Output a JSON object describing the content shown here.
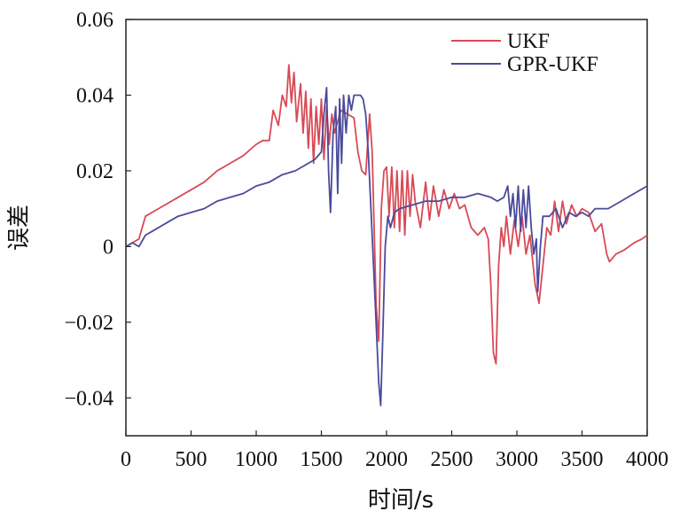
{
  "chart_data": {
    "type": "line",
    "xlabel": "时间/s",
    "ylabel": "误差",
    "xlim": [
      0,
      4000
    ],
    "ylim": [
      -0.05,
      0.06
    ],
    "xticks": [
      "0",
      "500",
      "1000",
      "1500",
      "2000",
      "2500",
      "3000",
      "3500",
      "4000"
    ],
    "yticks": [
      "0.06",
      "0.04",
      "0.02",
      "0",
      "−0.02",
      "−0.04"
    ],
    "grid": false,
    "legend": "top-right",
    "series": [
      {
        "name": "UKF",
        "color": "#d84a55",
        "points": [
          [
            0,
            0.0
          ],
          [
            50,
            0.001
          ],
          [
            100,
            0.002
          ],
          [
            150,
            0.008
          ],
          [
            200,
            0.009
          ],
          [
            300,
            0.011
          ],
          [
            400,
            0.013
          ],
          [
            500,
            0.015
          ],
          [
            600,
            0.017
          ],
          [
            700,
            0.02
          ],
          [
            800,
            0.022
          ],
          [
            900,
            0.024
          ],
          [
            1000,
            0.027
          ],
          [
            1050,
            0.028
          ],
          [
            1100,
            0.028
          ],
          [
            1130,
            0.036
          ],
          [
            1170,
            0.032
          ],
          [
            1200,
            0.04
          ],
          [
            1230,
            0.037
          ],
          [
            1250,
            0.048
          ],
          [
            1270,
            0.038
          ],
          [
            1290,
            0.046
          ],
          [
            1310,
            0.033
          ],
          [
            1340,
            0.043
          ],
          [
            1360,
            0.03
          ],
          [
            1380,
            0.041
          ],
          [
            1400,
            0.026
          ],
          [
            1420,
            0.039
          ],
          [
            1440,
            0.022
          ],
          [
            1460,
            0.037
          ],
          [
            1480,
            0.027
          ],
          [
            1500,
            0.039
          ],
          [
            1520,
            0.023
          ],
          [
            1540,
            0.037
          ],
          [
            1560,
            0.027
          ],
          [
            1580,
            0.035
          ],
          [
            1600,
            0.03
          ],
          [
            1650,
            0.036
          ],
          [
            1700,
            0.035
          ],
          [
            1750,
            0.034
          ],
          [
            1780,
            0.025
          ],
          [
            1810,
            0.02
          ],
          [
            1840,
            0.019
          ],
          [
            1870,
            0.035
          ],
          [
            1890,
            0.025
          ],
          [
            1920,
            -0.015
          ],
          [
            1940,
            -0.025
          ],
          [
            1960,
            0.01
          ],
          [
            1980,
            0.02
          ],
          [
            2000,
            0.021
          ],
          [
            2020,
            0.008
          ],
          [
            2040,
            0.021
          ],
          [
            2060,
            0.005
          ],
          [
            2080,
            0.02
          ],
          [
            2100,
            0.004
          ],
          [
            2120,
            0.02
          ],
          [
            2140,
            0.003
          ],
          [
            2160,
            0.02
          ],
          [
            2180,
            0.008
          ],
          [
            2200,
            0.019
          ],
          [
            2220,
            0.012
          ],
          [
            2260,
            0.005
          ],
          [
            2300,
            0.017
          ],
          [
            2330,
            0.007
          ],
          [
            2360,
            0.016
          ],
          [
            2400,
            0.008
          ],
          [
            2440,
            0.015
          ],
          [
            2480,
            0.01
          ],
          [
            2520,
            0.014
          ],
          [
            2560,
            0.01
          ],
          [
            2600,
            0.011
          ],
          [
            2650,
            0.005
          ],
          [
            2700,
            0.003
          ],
          [
            2750,
            0.005
          ],
          [
            2780,
            0.002
          ],
          [
            2800,
            -0.01
          ],
          [
            2820,
            -0.028
          ],
          [
            2840,
            -0.031
          ],
          [
            2860,
            -0.005
          ],
          [
            2880,
            0.005
          ],
          [
            2900,
            0.0
          ],
          [
            2920,
            0.008
          ],
          [
            2950,
            -0.002
          ],
          [
            2980,
            0.007
          ],
          [
            3010,
            0.0
          ],
          [
            3040,
            0.008
          ],
          [
            3070,
            -0.002
          ],
          [
            3100,
            0.003
          ],
          [
            3140,
            -0.01
          ],
          [
            3170,
            -0.015
          ],
          [
            3200,
            -0.005
          ],
          [
            3230,
            0.005
          ],
          [
            3260,
            0.003
          ],
          [
            3290,
            0.012
          ],
          [
            3320,
            0.004
          ],
          [
            3350,
            0.012
          ],
          [
            3380,
            0.006
          ],
          [
            3420,
            0.011
          ],
          [
            3460,
            0.008
          ],
          [
            3500,
            0.01
          ],
          [
            3550,
            0.009
          ],
          [
            3600,
            0.004
          ],
          [
            3650,
            0.006
          ],
          [
            3690,
            -0.002
          ],
          [
            3710,
            -0.004
          ],
          [
            3760,
            -0.002
          ],
          [
            3820,
            -0.001
          ],
          [
            3900,
            0.001
          ],
          [
            3960,
            0.002
          ],
          [
            4000,
            0.003
          ]
        ]
      },
      {
        "name": "GPR-UKF",
        "color": "#4a4a9c",
        "points": [
          [
            0,
            0.0
          ],
          [
            50,
            0.001
          ],
          [
            100,
            0.0
          ],
          [
            150,
            0.003
          ],
          [
            200,
            0.004
          ],
          [
            300,
            0.006
          ],
          [
            400,
            0.008
          ],
          [
            500,
            0.009
          ],
          [
            600,
            0.01
          ],
          [
            700,
            0.012
          ],
          [
            800,
            0.013
          ],
          [
            900,
            0.014
          ],
          [
            1000,
            0.016
          ],
          [
            1100,
            0.017
          ],
          [
            1200,
            0.019
          ],
          [
            1300,
            0.02
          ],
          [
            1400,
            0.022
          ],
          [
            1450,
            0.023
          ],
          [
            1500,
            0.025
          ],
          [
            1520,
            0.035
          ],
          [
            1540,
            0.042
          ],
          [
            1555,
            0.02
          ],
          [
            1570,
            0.009
          ],
          [
            1590,
            0.03
          ],
          [
            1610,
            0.037
          ],
          [
            1625,
            0.014
          ],
          [
            1640,
            0.039
          ],
          [
            1655,
            0.022
          ],
          [
            1670,
            0.04
          ],
          [
            1690,
            0.03
          ],
          [
            1710,
            0.04
          ],
          [
            1730,
            0.036
          ],
          [
            1750,
            0.04
          ],
          [
            1780,
            0.04
          ],
          [
            1800,
            0.04
          ],
          [
            1820,
            0.039
          ],
          [
            1840,
            0.035
          ],
          [
            1860,
            0.025
          ],
          [
            1880,
            0.01
          ],
          [
            1900,
            -0.005
          ],
          [
            1920,
            -0.02
          ],
          [
            1940,
            -0.036
          ],
          [
            1955,
            -0.042
          ],
          [
            1970,
            -0.025
          ],
          [
            1990,
            0.0
          ],
          [
            2010,
            0.008
          ],
          [
            2030,
            0.005
          ],
          [
            2060,
            0.009
          ],
          [
            2100,
            0.01
          ],
          [
            2200,
            0.011
          ],
          [
            2300,
            0.012
          ],
          [
            2400,
            0.012
          ],
          [
            2500,
            0.013
          ],
          [
            2600,
            0.013
          ],
          [
            2700,
            0.014
          ],
          [
            2800,
            0.013
          ],
          [
            2850,
            0.012
          ],
          [
            2900,
            0.013
          ],
          [
            2930,
            0.016
          ],
          [
            2950,
            0.008
          ],
          [
            2970,
            0.014
          ],
          [
            2990,
            0.005
          ],
          [
            3010,
            0.016
          ],
          [
            3030,
            0.004
          ],
          [
            3050,
            0.015
          ],
          [
            3070,
            0.005
          ],
          [
            3090,
            0.016
          ],
          [
            3110,
            0.005
          ],
          [
            3130,
            -0.002
          ],
          [
            3150,
            0.002
          ],
          [
            3160,
            -0.012
          ],
          [
            3180,
            0.0
          ],
          [
            3200,
            0.008
          ],
          [
            3250,
            0.008
          ],
          [
            3300,
            0.01
          ],
          [
            3350,
            0.005
          ],
          [
            3400,
            0.009
          ],
          [
            3450,
            0.008
          ],
          [
            3500,
            0.009
          ],
          [
            3550,
            0.008
          ],
          [
            3600,
            0.01
          ],
          [
            3700,
            0.01
          ],
          [
            3800,
            0.012
          ],
          [
            3900,
            0.014
          ],
          [
            4000,
            0.016
          ]
        ]
      }
    ]
  }
}
